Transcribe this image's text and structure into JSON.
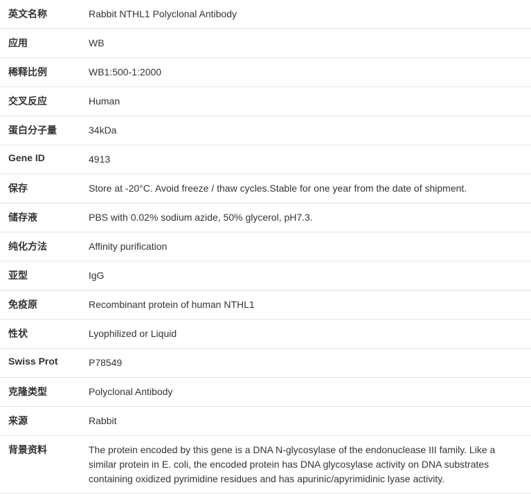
{
  "specs": [
    {
      "label": "英文名称",
      "value": "Rabbit NTHL1 Polyclonal Antibody"
    },
    {
      "label": "应用",
      "value": "WB"
    },
    {
      "label": "稀释比例",
      "value": "WB1:500-1:2000"
    },
    {
      "label": "交叉反应",
      "value": "Human"
    },
    {
      "label": "蛋白分子量",
      "value": "34kDa"
    },
    {
      "label": "Gene ID",
      "value": "4913"
    },
    {
      "label": "保存",
      "value": "Store at -20°C. Avoid freeze / thaw cycles.Stable for one year from the date of shipment."
    },
    {
      "label": "储存液",
      "value": "PBS with 0.02% sodium azide, 50% glycerol, pH7.3."
    },
    {
      "label": "纯化方法",
      "value": "Affinity purification"
    },
    {
      "label": "亚型",
      "value": "IgG"
    },
    {
      "label": "免疫原",
      "value": "Recombinant protein of human NTHL1"
    },
    {
      "label": "性状",
      "value": "Lyophilized or Liquid"
    },
    {
      "label": "Swiss Prot",
      "value": "P78549"
    },
    {
      "label": "克隆类型",
      "value": "Polyclonal Antibody"
    },
    {
      "label": "来源",
      "value": "Rabbit"
    },
    {
      "label": "背景资料",
      "value": "The protein encoded by this gene is a DNA N-glycosylase of the endonuclease III family. Like a similar protein in E. coli, the encoded protein has DNA glycosylase activity on DNA substrates containing oxidized pyrimidine residues and has apurinic/apyrimidinic lyase activity."
    }
  ]
}
